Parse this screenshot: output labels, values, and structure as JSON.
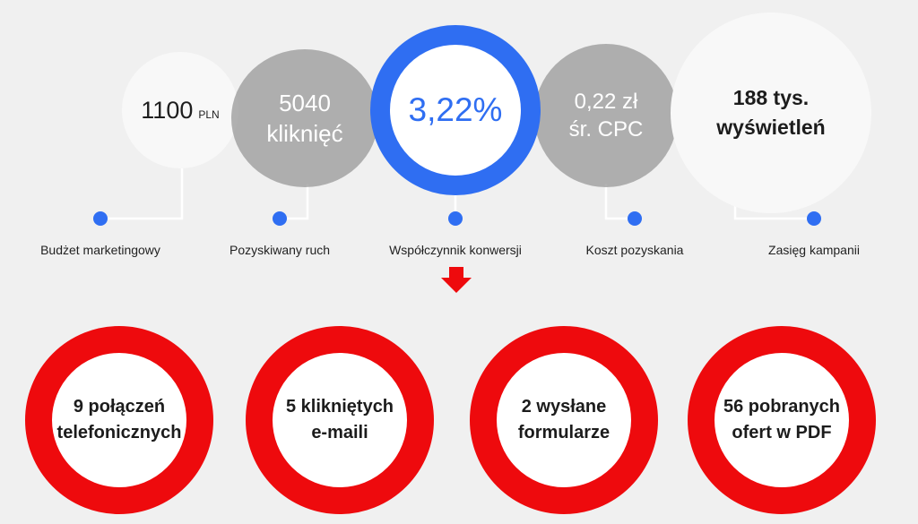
{
  "metrics": [
    {
      "id": "budget",
      "value": "1100",
      "unit": "PLN",
      "label": "Budżet marketingowy"
    },
    {
      "id": "traffic",
      "value_line1": "5040",
      "value_line2": "kliknięć",
      "label": "Pozyskiwany ruch"
    },
    {
      "id": "conversion",
      "value": "3,22%",
      "label": "Współczynnik konwersji"
    },
    {
      "id": "cpc",
      "value_line1": "0,22 zł",
      "value_line2": "śr. CPC",
      "label": "Koszt pozyskania"
    },
    {
      "id": "reach",
      "value_line1": "188 tys.",
      "value_line2": "wyświetleń",
      "label": "Zasięg kampanii"
    }
  ],
  "results": [
    {
      "line1": "9 połączeń",
      "line2": "telefonicznych"
    },
    {
      "line1": "5 klikniętych",
      "line2": "e-maili"
    },
    {
      "line1": "2 wysłane",
      "line2": "formularze"
    },
    {
      "line1": "56 pobranych",
      "line2": "ofert w PDF"
    }
  ],
  "colors": {
    "accent_blue": "#2f6ef2",
    "accent_red": "#ee0a0d",
    "grey": "#949494",
    "background": "#f0f0f0"
  }
}
